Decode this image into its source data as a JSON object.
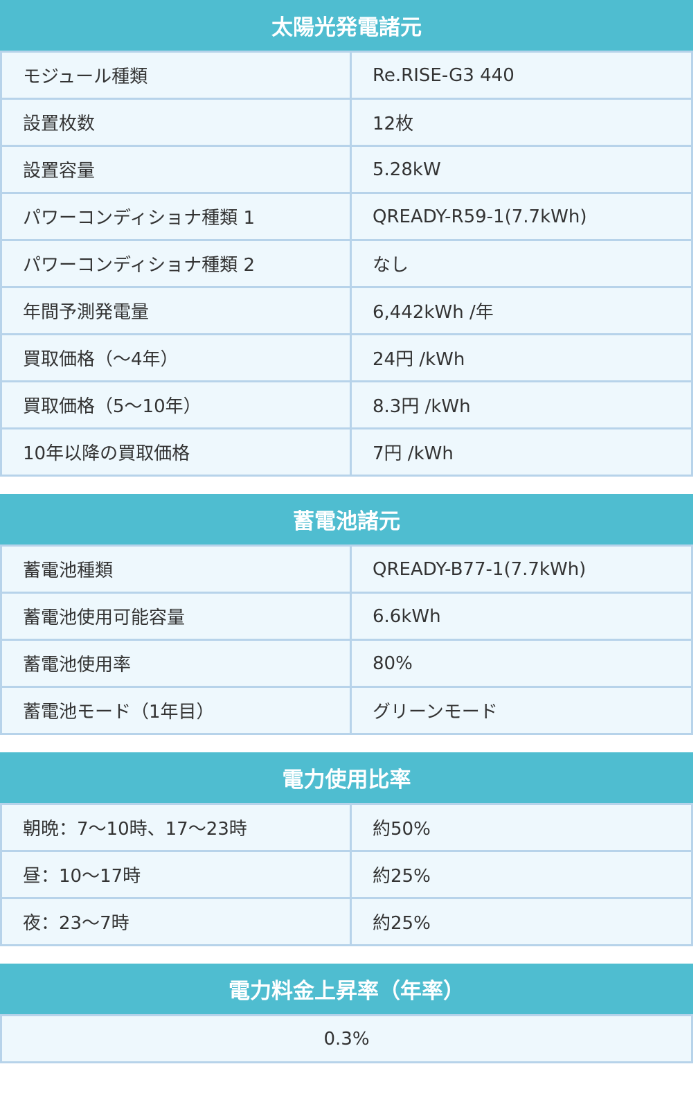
{
  "sections": [
    {
      "title": "太陽光発電諸元",
      "rows": [
        {
          "label": "モジュール種類",
          "value": "Re.RISE-G3 440"
        },
        {
          "label": "設置枚数",
          "value": "12枚"
        },
        {
          "label": "設置容量",
          "value": "5.28kW"
        },
        {
          "label": "パワーコンディショナ種類 1",
          "value": "QREADY-R59-1(7.7kWh)"
        },
        {
          "label": "パワーコンディショナ種類 2",
          "value": "なし"
        },
        {
          "label": "年間予測発電量",
          "value": "6,442kWh /年"
        },
        {
          "label": "買取価格（〜4年）",
          "value": "24円 /kWh"
        },
        {
          "label": "買取価格（5〜10年）",
          "value": "8.3円 /kWh"
        },
        {
          "label": "10年以降の買取価格",
          "value": "7円 /kWh"
        }
      ]
    },
    {
      "title": "蓄電池諸元",
      "rows": [
        {
          "label": "蓄電池種類",
          "value": "QREADY-B77-1(7.7kWh)"
        },
        {
          "label": "蓄電池使用可能容量",
          "value": "6.6kWh"
        },
        {
          "label": "蓄電池使用率",
          "value": "80%"
        },
        {
          "label": "蓄電池モード（1年目）",
          "value": "グリーンモード"
        }
      ]
    },
    {
      "title": "電力使用比率",
      "rows": [
        {
          "label": "朝晩：7〜10時、17〜23時",
          "value": "約50%"
        },
        {
          "label": "昼：10〜17時",
          "value": "約25%"
        },
        {
          "label": "夜：23〜7時",
          "value": "約25%"
        }
      ]
    },
    {
      "title": "電力料金上昇率（年率）",
      "value": "0.3%"
    }
  ],
  "colors": {
    "header": "#4fbdd0",
    "cell": "#eef8fd",
    "border": "#b7d3ea"
  }
}
